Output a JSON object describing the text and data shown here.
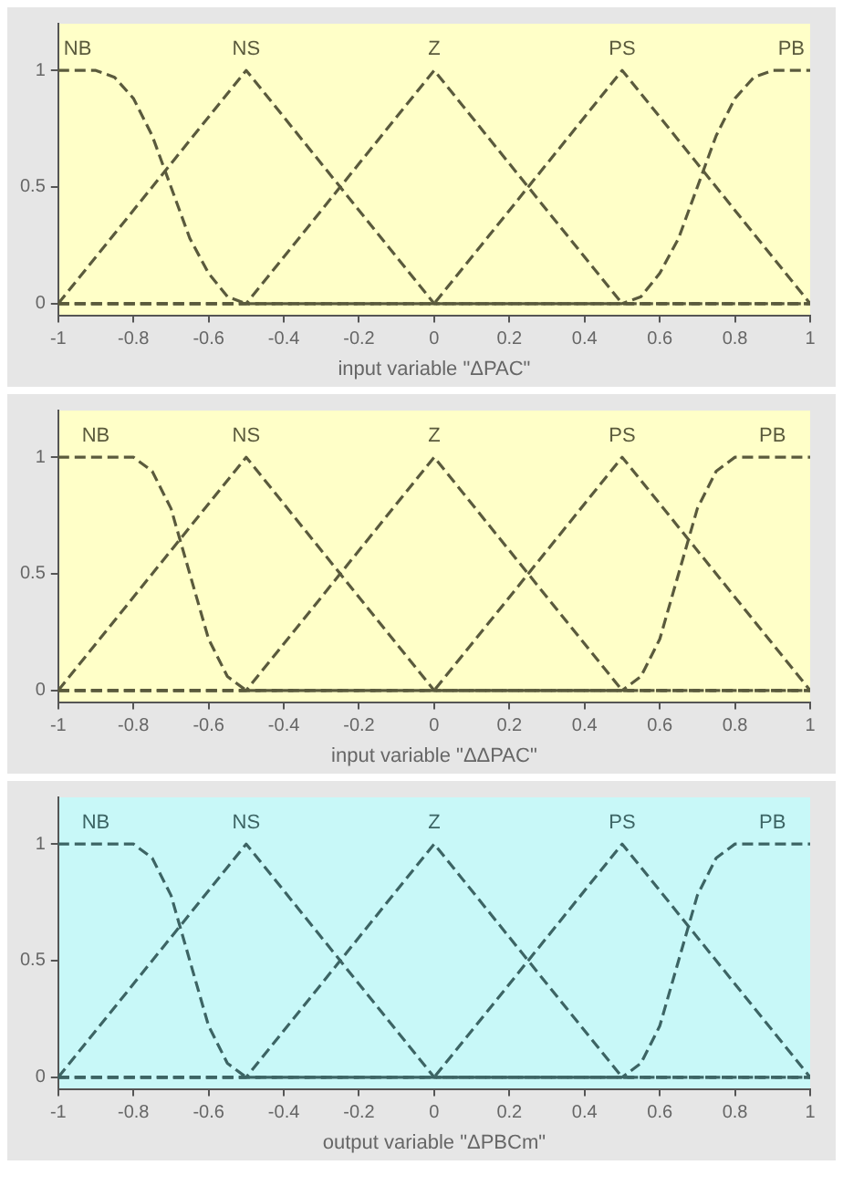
{
  "chart_data": [
    {
      "type": "line",
      "xlabel": "input variable \"ΔPAC\"",
      "xlim": [
        -1,
        1
      ],
      "ylim": [
        -0.05,
        1.2
      ],
      "xticks": [
        -1,
        -0.8,
        -0.6,
        -0.4,
        -0.2,
        0,
        0.2,
        0.4,
        0.6,
        0.8,
        1
      ],
      "yticks": [
        0,
        0.5,
        1
      ],
      "grid": false,
      "legend": false,
      "marker": "none",
      "line_style": "dashed",
      "series": [
        {
          "name": "NB",
          "color": "#5a5a3c",
          "x": [
            -1,
            -0.9,
            -0.85,
            -0.8,
            -0.75,
            -0.7,
            -0.65,
            -0.6,
            -0.55,
            -0.5,
            1
          ],
          "values": [
            1,
            1,
            0.97,
            0.88,
            0.72,
            0.5,
            0.28,
            0.13,
            0.03,
            0,
            0
          ]
        },
        {
          "name": "NS",
          "color": "#5a5a3c",
          "x": [
            -1,
            -0.5,
            0,
            1
          ],
          "values": [
            0,
            1,
            0,
            0
          ]
        },
        {
          "name": "Z",
          "color": "#5a5a3c",
          "x": [
            -1,
            -0.5,
            0,
            0.5,
            1
          ],
          "values": [
            0,
            0,
            1,
            0,
            0
          ]
        },
        {
          "name": "PS",
          "color": "#5a5a3c",
          "x": [
            -1,
            0,
            0.5,
            1
          ],
          "values": [
            0,
            0,
            1,
            0
          ]
        },
        {
          "name": "PB",
          "color": "#5a5a3c",
          "x": [
            -1,
            0.5,
            0.55,
            0.6,
            0.65,
            0.7,
            0.75,
            0.8,
            0.85,
            0.9,
            1
          ],
          "values": [
            0,
            0,
            0.03,
            0.13,
            0.28,
            0.5,
            0.72,
            0.88,
            0.97,
            1,
            1
          ]
        }
      ]
    },
    {
      "type": "line",
      "xlabel": "input variable \"ΔΔPAC\"",
      "xlim": [
        -1,
        1
      ],
      "ylim": [
        -0.05,
        1.2
      ],
      "xticks": [
        -1,
        -0.8,
        -0.6,
        -0.4,
        -0.2,
        0,
        0.2,
        0.4,
        0.6,
        0.8,
        1
      ],
      "yticks": [
        0,
        0.5,
        1
      ],
      "grid": false,
      "legend": false,
      "marker": "none",
      "line_style": "dashed",
      "series": [
        {
          "name": "NB",
          "color": "#5a5a3c",
          "x": [
            -1,
            -0.8,
            -0.75,
            -0.7,
            -0.65,
            -0.6,
            -0.55,
            -0.5,
            1
          ],
          "values": [
            1,
            1,
            0.94,
            0.78,
            0.5,
            0.22,
            0.06,
            0,
            0
          ]
        },
        {
          "name": "NS",
          "color": "#5a5a3c",
          "x": [
            -1,
            -0.5,
            0,
            1
          ],
          "values": [
            0,
            1,
            0,
            0
          ]
        },
        {
          "name": "Z",
          "color": "#5a5a3c",
          "x": [
            -1,
            -0.5,
            0,
            0.5,
            1
          ],
          "values": [
            0,
            0,
            1,
            0,
            0
          ]
        },
        {
          "name": "PS",
          "color": "#5a5a3c",
          "x": [
            -1,
            0,
            0.5,
            1
          ],
          "values": [
            0,
            0,
            1,
            0
          ]
        },
        {
          "name": "PB",
          "color": "#5a5a3c",
          "x": [
            -1,
            0.5,
            0.55,
            0.6,
            0.65,
            0.7,
            0.75,
            0.8,
            1
          ],
          "values": [
            0,
            0,
            0.06,
            0.22,
            0.5,
            0.78,
            0.94,
            1,
            1
          ]
        }
      ]
    },
    {
      "type": "line",
      "xlabel": "output variable \"ΔPBCm\"",
      "xlim": [
        -1,
        1
      ],
      "ylim": [
        -0.05,
        1.2
      ],
      "xticks": [
        -1,
        -0.8,
        -0.6,
        -0.4,
        -0.2,
        0,
        0.2,
        0.4,
        0.6,
        0.8,
        1
      ],
      "yticks": [
        0,
        0.5,
        1
      ],
      "grid": false,
      "legend": false,
      "marker": "none",
      "line_style": "dashed",
      "series": [
        {
          "name": "NB",
          "color": "#3c6464",
          "x": [
            -1,
            -0.8,
            -0.75,
            -0.7,
            -0.65,
            -0.6,
            -0.55,
            -0.5,
            1
          ],
          "values": [
            1,
            1,
            0.94,
            0.78,
            0.5,
            0.22,
            0.06,
            0,
            0
          ]
        },
        {
          "name": "NS",
          "color": "#3c6464",
          "x": [
            -1,
            -0.5,
            0,
            1
          ],
          "values": [
            0,
            1,
            0,
            0
          ]
        },
        {
          "name": "Z",
          "color": "#3c6464",
          "x": [
            -1,
            -0.5,
            0,
            0.5,
            1
          ],
          "values": [
            0,
            0,
            1,
            0,
            0
          ]
        },
        {
          "name": "PS",
          "color": "#3c6464",
          "x": [
            -1,
            0,
            0.5,
            1
          ],
          "values": [
            0,
            0,
            1,
            0
          ]
        },
        {
          "name": "PB",
          "color": "#3c6464",
          "x": [
            -1,
            0.5,
            0.55,
            0.6,
            0.65,
            0.7,
            0.75,
            0.8,
            1
          ],
          "values": [
            0,
            0,
            0.06,
            0.22,
            0.5,
            0.78,
            0.94,
            1,
            1
          ]
        }
      ]
    }
  ]
}
